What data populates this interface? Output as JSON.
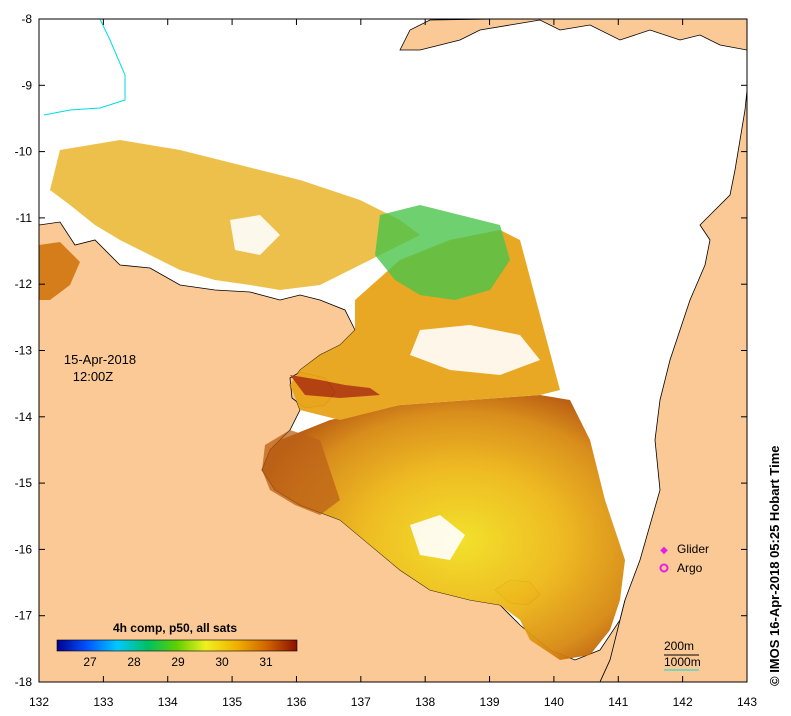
{
  "map": {
    "longitudes": [
      "132",
      "133",
      "134",
      "135",
      "136",
      "137",
      "138",
      "139",
      "140",
      "141",
      "142",
      "143"
    ],
    "latitudes": [
      "-8",
      "-9",
      "-10",
      "-11",
      "-12",
      "-13",
      "-14",
      "-15",
      "-16",
      "-17",
      "-18"
    ],
    "date_label": "15-Apr-2018",
    "time_label": "12:00Z",
    "colorbar": {
      "title": "4h comp, p50, all sats",
      "ticks": [
        "27",
        "28",
        "29",
        "30",
        "31"
      ]
    },
    "legend": {
      "glider": "Glider",
      "argo": "Argo",
      "contour_200": "200m",
      "contour_1000": "1000m"
    },
    "credit": "© IMOS 16-Apr-2018 05:25 Hobart Time",
    "colors": {
      "land": "#fbc996",
      "sea_no_data": "#ffffff",
      "glider": "#e81ee8",
      "argo": "#e81ee8",
      "contour_1000": "#00dede"
    }
  }
}
